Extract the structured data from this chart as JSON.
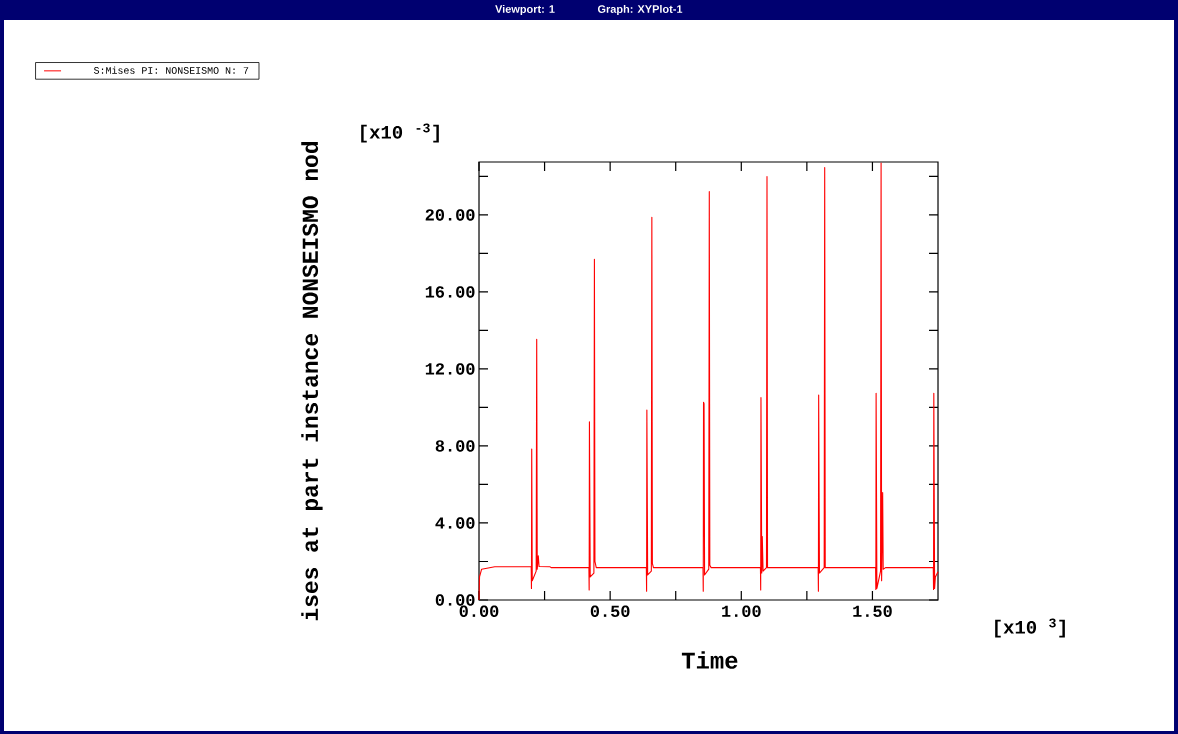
{
  "chart_data": {
    "type": "line",
    "title": "Viewport: 1",
    "subtitle": "Graph: XYPlot-1",
    "xlabel": "Time",
    "ylabel": "ises at part instance NONSEISMO nod",
    "annotations": [
      "[x10 $^{-3}$]",
      "[x10 $^{3}$]"
    ],
    "legend": "top left",
    "marker": "none",
    "line_style": "solid",
    "grid": false,
    "xlim": [
      0,
      1.75
    ],
    "ylim": [
      0,
      22.75
    ],
    "xticks": [
      {
        "value": 0,
        "label": "0.00"
      },
      {
        "value": 0.25,
        "label": null
      },
      {
        "value": 0.5,
        "label": "0.50"
      },
      {
        "value": 0.75,
        "label": null
      },
      {
        "value": 1.0,
        "label": "1.00"
      },
      {
        "value": 1.25,
        "label": null
      },
      {
        "value": 1.5,
        "label": "1.50"
      }
    ],
    "yticks": [
      {
        "value": 0,
        "label": "0.00"
      },
      {
        "value": 2,
        "label": null
      },
      {
        "value": 4,
        "label": "4.00"
      },
      {
        "value": 6,
        "label": null
      },
      {
        "value": 8,
        "label": "8.00"
      },
      {
        "value": 10,
        "label": null
      },
      {
        "value": 12,
        "label": "12.00"
      },
      {
        "value": 14,
        "label": null
      },
      {
        "value": 16,
        "label": "16.00"
      },
      {
        "value": 18,
        "label": null
      },
      {
        "value": 20,
        "label": "20.00"
      },
      {
        "value": 22,
        "label": null
      }
    ],
    "series": [
      {
        "name": "S:Mises PI: NONSEISMO N: 7",
        "color": "#ff0000",
        "x": [
          0,
          0.002,
          0.01,
          0.06,
          0.199,
          0.2,
          0.201,
          0.203,
          0.218,
          0.22,
          0.222,
          0.226,
          0.229,
          0.27,
          0.275,
          0.419,
          0.42,
          0.421,
          0.424,
          0.438,
          0.44,
          0.442,
          0.447,
          0.638,
          0.639,
          0.64,
          0.643,
          0.657,
          0.659,
          0.661,
          0.665,
          0.854,
          0.855,
          0.856,
          0.858,
          0.86,
          0.876,
          0.878,
          0.88,
          0.885,
          1.073,
          1.074,
          1.075,
          1.078,
          1.08,
          1.083,
          1.096,
          1.098,
          1.1,
          1.293,
          1.294,
          1.295,
          1.298,
          1.316,
          1.318,
          1.32,
          1.512,
          1.513,
          1.514,
          1.517,
          1.531,
          1.533,
          1.535,
          1.539,
          1.541,
          1.55,
          1.732,
          1.733,
          1.734,
          1.737,
          1.74,
          1.75
        ],
        "values": [
          0,
          1.2,
          1.6,
          1.73,
          1.73,
          0.6,
          7.84,
          1.0,
          1.5,
          13.54,
          1.6,
          2.3,
          1.74,
          1.73,
          1.68,
          1.68,
          0.52,
          9.26,
          1.2,
          1.4,
          17.7,
          2.0,
          1.68,
          1.68,
          0.45,
          9.87,
          1.3,
          1.5,
          19.88,
          1.9,
          1.68,
          1.68,
          0.45,
          10.27,
          10.2,
          1.3,
          1.6,
          21.21,
          1.8,
          1.68,
          1.68,
          0.52,
          10.51,
          1.4,
          3.3,
          1.5,
          1.68,
          21.99,
          1.68,
          1.68,
          0.45,
          10.65,
          1.4,
          1.68,
          22.46,
          1.68,
          1.68,
          0.55,
          10.74,
          0.6,
          1.5,
          22.7,
          1.0,
          5.58,
          1.6,
          1.68,
          1.68,
          0.55,
          10.74,
          0.6,
          1.2,
          1.47
        ]
      }
    ]
  }
}
